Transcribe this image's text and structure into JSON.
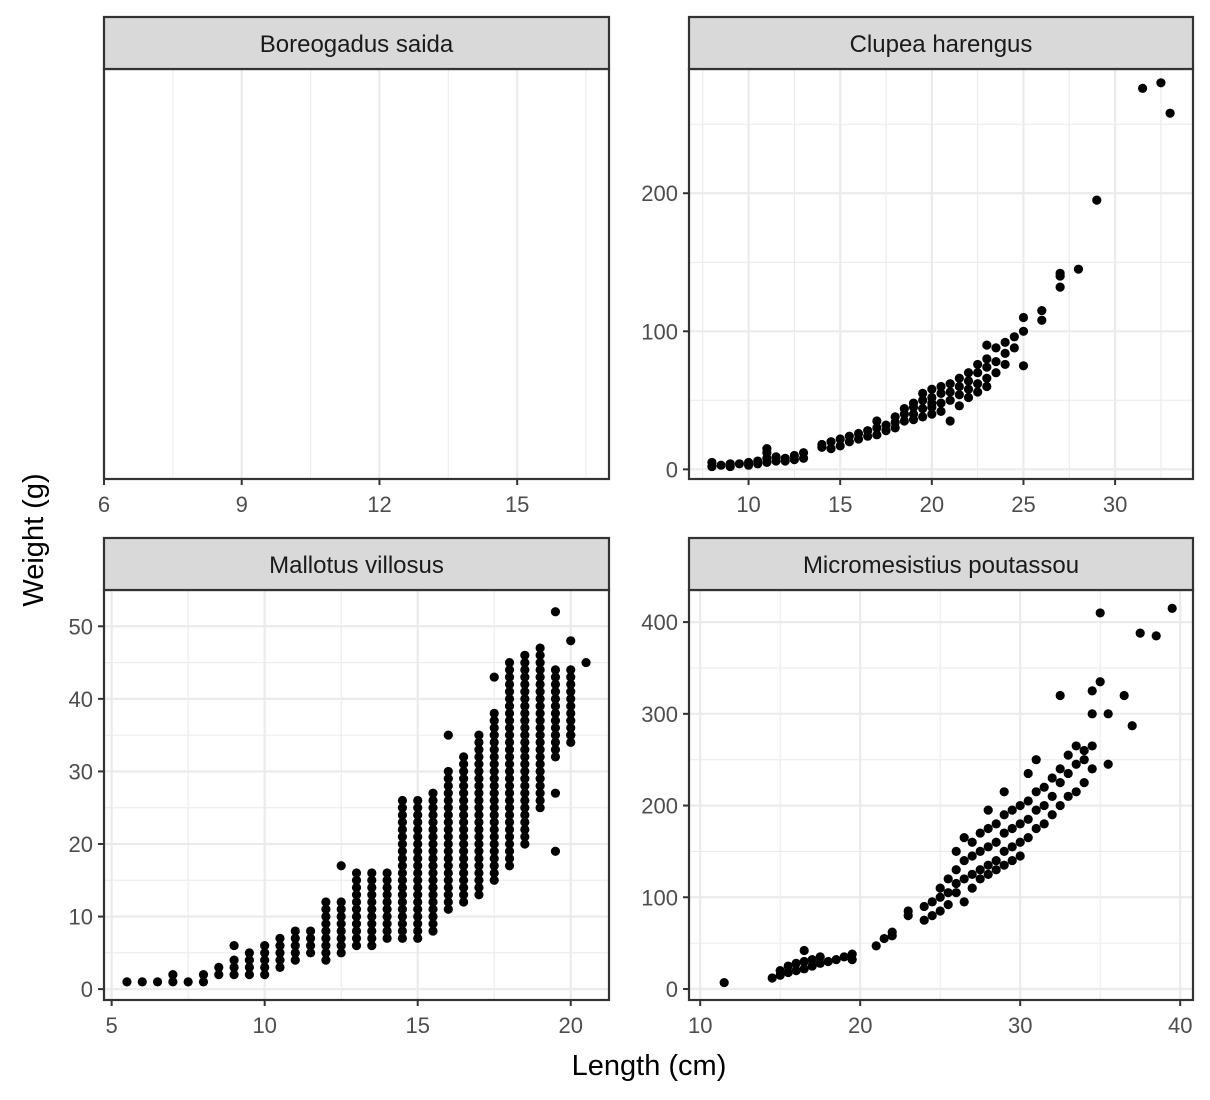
{
  "chart_data": {
    "type": "scatter",
    "xlabel": "Length (cm)",
    "ylabel": "Weight (g)",
    "colors": {
      "point": "#000000",
      "strip_fill": "#d9d9d9",
      "grid": "#ebebeb",
      "border": "#333333"
    },
    "grid": true,
    "facets": [
      {
        "title": "Boreogadus saida",
        "xlim": [
          6,
          17
        ],
        "xticks": [
          6,
          9,
          12,
          15
        ],
        "ylim": null,
        "yticks": [],
        "points": []
      },
      {
        "title": "Clupea harengus",
        "xlim": [
          6.75,
          34.25
        ],
        "xticks": [
          10,
          15,
          20,
          25,
          30
        ],
        "ylim": [
          -7,
          290
        ],
        "yticks": [
          0,
          100,
          200
        ],
        "points": [
          [
            8,
            2
          ],
          [
            8,
            5
          ],
          [
            8.5,
            3
          ],
          [
            9,
            4
          ],
          [
            9,
            2
          ],
          [
            9.5,
            4
          ],
          [
            10,
            5
          ],
          [
            10,
            3
          ],
          [
            10.5,
            6
          ],
          [
            10.5,
            4
          ],
          [
            11,
            8
          ],
          [
            11,
            5
          ],
          [
            11,
            12
          ],
          [
            11,
            15
          ],
          [
            11.5,
            6
          ],
          [
            11.5,
            9
          ],
          [
            12,
            8
          ],
          [
            12,
            6
          ],
          [
            12.5,
            7
          ],
          [
            12.5,
            10
          ],
          [
            13,
            8
          ],
          [
            13,
            12
          ],
          [
            14,
            18
          ],
          [
            14,
            16
          ],
          [
            14.5,
            20
          ],
          [
            14.5,
            15
          ],
          [
            15,
            17
          ],
          [
            15,
            22
          ],
          [
            15.5,
            24
          ],
          [
            15.5,
            20
          ],
          [
            16,
            26
          ],
          [
            16,
            22
          ],
          [
            16.5,
            24
          ],
          [
            16.5,
            28
          ],
          [
            17,
            25
          ],
          [
            17,
            30
          ],
          [
            17,
            35
          ],
          [
            17.5,
            32
          ],
          [
            17.5,
            28
          ],
          [
            18,
            34
          ],
          [
            18,
            38
          ],
          [
            18,
            30
          ],
          [
            18.5,
            40
          ],
          [
            18.5,
            35
          ],
          [
            18.5,
            44
          ],
          [
            19,
            45
          ],
          [
            19,
            40
          ],
          [
            19,
            48
          ],
          [
            19,
            36
          ],
          [
            19.5,
            50
          ],
          [
            19.5,
            44
          ],
          [
            19.5,
            38
          ],
          [
            19.5,
            55
          ],
          [
            20,
            52
          ],
          [
            20,
            48
          ],
          [
            20,
            45
          ],
          [
            20,
            58
          ],
          [
            20,
            40
          ],
          [
            20.5,
            60
          ],
          [
            20.5,
            55
          ],
          [
            20.5,
            48
          ],
          [
            20.5,
            42
          ],
          [
            21,
            62
          ],
          [
            21,
            56
          ],
          [
            21,
            50
          ],
          [
            21,
            35
          ],
          [
            21.5,
            66
          ],
          [
            21.5,
            60
          ],
          [
            21.5,
            54
          ],
          [
            21.5,
            46
          ],
          [
            22,
            70
          ],
          [
            22,
            64
          ],
          [
            22,
            58
          ],
          [
            22,
            52
          ],
          [
            22.5,
            76
          ],
          [
            22.5,
            70
          ],
          [
            22.5,
            62
          ],
          [
            22.5,
            56
          ],
          [
            23,
            80
          ],
          [
            23,
            74
          ],
          [
            23,
            66
          ],
          [
            23,
            60
          ],
          [
            23,
            90
          ],
          [
            23.5,
            88
          ],
          [
            23.5,
            78
          ],
          [
            23.5,
            70
          ],
          [
            24,
            92
          ],
          [
            24,
            84
          ],
          [
            24,
            76
          ],
          [
            24.5,
            96
          ],
          [
            24.5,
            88
          ],
          [
            25,
            100
          ],
          [
            25,
            110
          ],
          [
            25,
            75
          ],
          [
            26,
            108
          ],
          [
            26,
            115
          ],
          [
            27,
            140
          ],
          [
            27,
            132
          ],
          [
            27,
            142
          ],
          [
            28,
            145
          ],
          [
            29,
            195
          ],
          [
            31.5,
            276
          ],
          [
            32.5,
            280
          ],
          [
            33,
            258
          ]
        ]
      },
      {
        "title": "Mallotus villosus",
        "xlim": [
          4.75,
          21.25
        ],
        "xticks": [
          5,
          10,
          15,
          20
        ],
        "ylim": [
          -1.5,
          55
        ],
        "yticks": [
          0,
          10,
          20,
          30,
          40,
          50
        ],
        "points": [
          [
            5.5,
            1
          ],
          [
            6,
            1
          ],
          [
            6.5,
            1
          ],
          [
            7,
            1
          ],
          [
            7,
            2
          ],
          [
            7.5,
            1
          ],
          [
            8,
            1
          ],
          [
            8,
            2
          ],
          [
            8.5,
            2
          ],
          [
            8.5,
            3
          ],
          [
            9,
            2
          ],
          [
            9,
            3
          ],
          [
            9,
            4
          ],
          [
            9,
            6
          ],
          [
            9.5,
            2
          ],
          [
            9.5,
            3
          ],
          [
            9.5,
            4
          ],
          [
            9.5,
            5
          ],
          [
            10,
            2
          ],
          [
            10,
            3
          ],
          [
            10,
            4
          ],
          [
            10,
            5
          ],
          [
            10,
            6
          ],
          [
            10.5,
            3
          ],
          [
            10.5,
            4
          ],
          [
            10.5,
            5
          ],
          [
            10.5,
            6
          ],
          [
            10.5,
            7
          ],
          [
            11,
            4
          ],
          [
            11,
            5
          ],
          [
            11,
            6
          ],
          [
            11,
            7
          ],
          [
            11,
            8
          ],
          [
            11.5,
            5
          ],
          [
            11.5,
            6
          ],
          [
            11.5,
            7
          ],
          [
            11.5,
            8
          ],
          [
            12,
            4
          ],
          [
            12,
            5
          ],
          [
            12,
            6
          ],
          [
            12,
            7
          ],
          [
            12,
            8
          ],
          [
            12,
            9
          ],
          [
            12,
            10
          ],
          [
            12,
            11
          ],
          [
            12,
            12
          ],
          [
            12.5,
            5
          ],
          [
            12.5,
            6
          ],
          [
            12.5,
            7
          ],
          [
            12.5,
            8
          ],
          [
            12.5,
            9
          ],
          [
            12.5,
            10
          ],
          [
            12.5,
            11
          ],
          [
            12.5,
            12
          ],
          [
            12.5,
            17
          ],
          [
            19.5,
            27
          ],
          [
            19.5,
            19
          ],
          [
            19.5,
            52
          ],
          [
            20,
            48
          ],
          [
            20,
            35
          ],
          [
            20.5,
            45
          ],
          [
            16,
            35
          ],
          [
            17.5,
            43
          ]
        ],
        "columns": [
          {
            "x": 13,
            "ymin": 6,
            "ymax": 16
          },
          {
            "x": 13.5,
            "ymin": 6,
            "ymax": 16
          },
          {
            "x": 14,
            "ymin": 7,
            "ymax": 16
          },
          {
            "x": 14.5,
            "ymin": 7,
            "ymax": 26
          },
          {
            "x": 15,
            "ymin": 7,
            "ymax": 26
          },
          {
            "x": 15.5,
            "ymin": 8,
            "ymax": 27
          },
          {
            "x": 16,
            "ymin": 11,
            "ymax": 30
          },
          {
            "x": 16.5,
            "ymin": 12,
            "ymax": 32
          },
          {
            "x": 17,
            "ymin": 13,
            "ymax": 35
          },
          {
            "x": 17.5,
            "ymin": 15,
            "ymax": 38
          },
          {
            "x": 18,
            "ymin": 17,
            "ymax": 45
          },
          {
            "x": 18.5,
            "ymin": 20,
            "ymax": 46
          },
          {
            "x": 19,
            "ymin": 25,
            "ymax": 47
          },
          {
            "x": 19.5,
            "ymin": 32,
            "ymax": 44
          },
          {
            "x": 20,
            "ymin": 34,
            "ymax": 44
          }
        ]
      },
      {
        "title": "Micromesistius poutassou",
        "xlim": [
          9.3,
          40.8
        ],
        "xticks": [
          10,
          20,
          30,
          40
        ],
        "ylim": [
          -12,
          435
        ],
        "yticks": [
          0,
          100,
          200,
          300,
          400
        ],
        "points": [
          [
            11.5,
            7
          ],
          [
            14.5,
            12
          ],
          [
            15,
            15
          ],
          [
            15,
            20
          ],
          [
            15.5,
            18
          ],
          [
            15.5,
            25
          ],
          [
            16,
            20
          ],
          [
            16,
            28
          ],
          [
            16.5,
            22
          ],
          [
            16.5,
            30
          ],
          [
            16.5,
            42
          ],
          [
            17,
            25
          ],
          [
            17,
            32
          ],
          [
            17.5,
            28
          ],
          [
            17.5,
            35
          ],
          [
            18,
            30
          ],
          [
            18.5,
            32
          ],
          [
            19,
            35
          ],
          [
            19.5,
            38
          ],
          [
            19.5,
            32
          ],
          [
            21,
            47
          ],
          [
            21.5,
            55
          ],
          [
            22,
            58
          ],
          [
            22,
            62
          ],
          [
            23,
            85
          ],
          [
            23,
            80
          ],
          [
            24,
            75
          ],
          [
            24,
            90
          ],
          [
            24.5,
            80
          ],
          [
            24.5,
            95
          ],
          [
            25,
            100
          ],
          [
            25,
            110
          ],
          [
            25,
            85
          ],
          [
            25.5,
            105
          ],
          [
            25.5,
            120
          ],
          [
            25.5,
            92
          ],
          [
            26,
            115
          ],
          [
            26,
            130
          ],
          [
            26,
            150
          ],
          [
            26,
            105
          ],
          [
            26.5,
            120
          ],
          [
            26.5,
            140
          ],
          [
            26.5,
            165
          ],
          [
            26.5,
            95
          ],
          [
            27,
            125
          ],
          [
            27,
            145
          ],
          [
            27,
            160
          ],
          [
            27,
            110
          ],
          [
            27.5,
            130
          ],
          [
            27.5,
            150
          ],
          [
            27.5,
            170
          ],
          [
            27.5,
            120
          ],
          [
            28,
            135
          ],
          [
            28,
            155
          ],
          [
            28,
            175
          ],
          [
            28,
            195
          ],
          [
            28,
            125
          ],
          [
            28.5,
            140
          ],
          [
            28.5,
            160
          ],
          [
            28.5,
            180
          ],
          [
            28.5,
            130
          ],
          [
            29,
            150
          ],
          [
            29,
            170
          ],
          [
            29,
            190
          ],
          [
            29,
            135
          ],
          [
            29,
            215
          ],
          [
            29.5,
            155
          ],
          [
            29.5,
            175
          ],
          [
            29.5,
            195
          ],
          [
            29.5,
            140
          ],
          [
            30,
            160
          ],
          [
            30,
            180
          ],
          [
            30,
            200
          ],
          [
            30,
            145
          ],
          [
            30.5,
            165
          ],
          [
            30.5,
            185
          ],
          [
            30.5,
            205
          ],
          [
            30.5,
            235
          ],
          [
            31,
            175
          ],
          [
            31,
            195
          ],
          [
            31,
            215
          ],
          [
            31,
            250
          ],
          [
            31.5,
            180
          ],
          [
            31.5,
            200
          ],
          [
            31.5,
            220
          ],
          [
            32,
            190
          ],
          [
            32,
            210
          ],
          [
            32,
            230
          ],
          [
            32.5,
            200
          ],
          [
            32.5,
            225
          ],
          [
            32.5,
            240
          ],
          [
            32.5,
            320
          ],
          [
            33,
            210
          ],
          [
            33,
            235
          ],
          [
            33,
            255
          ],
          [
            33.5,
            215
          ],
          [
            33.5,
            245
          ],
          [
            33.5,
            265
          ],
          [
            34,
            225
          ],
          [
            34,
            250
          ],
          [
            34,
            260
          ],
          [
            34.5,
            240
          ],
          [
            34.5,
            265
          ],
          [
            34.5,
            300
          ],
          [
            34.5,
            325
          ],
          [
            35,
            335
          ],
          [
            35,
            410
          ],
          [
            35.5,
            245
          ],
          [
            35.5,
            300
          ],
          [
            36.5,
            320
          ],
          [
            37,
            287
          ],
          [
            37.5,
            388
          ],
          [
            38.5,
            385
          ],
          [
            39.5,
            415
          ]
        ]
      }
    ]
  }
}
